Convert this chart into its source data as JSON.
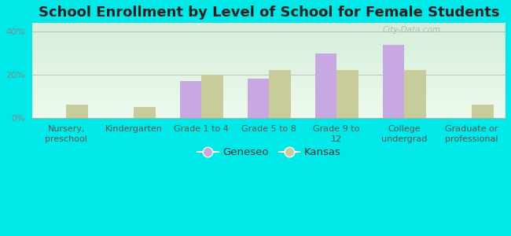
{
  "title": "School Enrollment by Level of School for Female Students",
  "categories": [
    "Nursery,\npreschool",
    "Kindergarten",
    "Grade 1 to 4",
    "Grade 5 to 8",
    "Grade 9 to\n12",
    "College\nundergrad",
    "Graduate or\nprofessional"
  ],
  "geneseo": [
    0,
    0,
    17,
    18,
    30,
    34,
    0
  ],
  "kansas": [
    6,
    5,
    20,
    22,
    22,
    22,
    6
  ],
  "geneseo_color": "#c8a8e0",
  "kansas_color": "#c8cc9a",
  "background_color": "#00e8e8",
  "plot_bg_top": "#d4eeda",
  "plot_bg_bottom": "#edfaed",
  "ylim_max": 44,
  "yticks": [
    0,
    20,
    40
  ],
  "ytick_labels": [
    "0%",
    "20%",
    "40%"
  ],
  "legend_labels": [
    "Geneseo",
    "Kansas"
  ],
  "bar_width": 0.32,
  "title_fontsize": 13,
  "tick_fontsize": 8,
  "legend_fontsize": 9.5,
  "watermark": "City-Data.com"
}
